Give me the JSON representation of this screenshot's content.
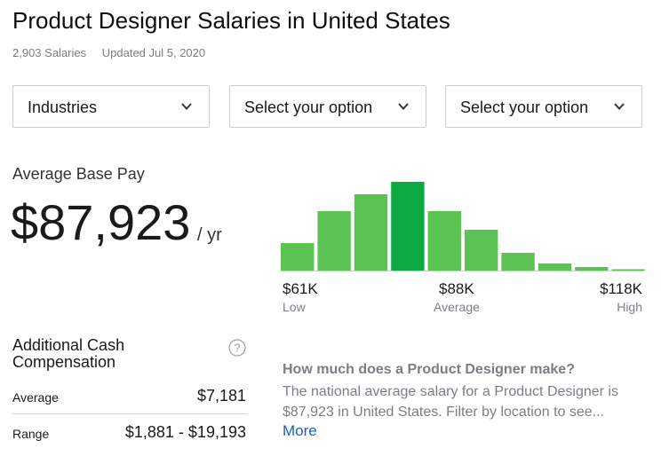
{
  "header": {
    "title": "Product Designer Salaries in United States",
    "salary_count": "2,903 Salaries",
    "updated": "Updated Jul 5, 2020"
  },
  "filters": [
    {
      "label": "Industries",
      "icon": "chevron-down-icon"
    },
    {
      "label": "Select your option",
      "icon": "chevron-down-icon"
    },
    {
      "label": "Select your option",
      "icon": "chevron-down-icon"
    }
  ],
  "base_pay": {
    "label": "Average Base Pay",
    "value": "$87,923",
    "unit": "/ yr"
  },
  "chart_data": {
    "type": "bar",
    "relative_heights": [
      0.31,
      0.67,
      0.86,
      1.0,
      0.67,
      0.46,
      0.2,
      0.08,
      0.04,
      0.01
    ],
    "highlighted_index": 3,
    "colors": {
      "bar": "#5ac352",
      "highlight": "#0caa41"
    },
    "axis": {
      "low": {
        "value": "$61K",
        "label": "Low"
      },
      "average": {
        "value": "$88K",
        "label": "Average"
      },
      "high": {
        "value": "$118K",
        "label": "High"
      }
    }
  },
  "additional_cash": {
    "title": "Additional Cash Compensation",
    "help_icon": "question-circle-icon",
    "rows": [
      {
        "label": "Average",
        "value": "$7,181"
      },
      {
        "label": "Range",
        "value": "$1,881 - $19,193"
      }
    ]
  },
  "info": {
    "question": "How much does a Product Designer make?",
    "text": "The national average salary for a Product Designer is $87,923 in United States. Filter by location to see...",
    "more_label": "More"
  },
  "colors": {
    "link": "#1861bf",
    "muted_text": "#7a7f85"
  }
}
